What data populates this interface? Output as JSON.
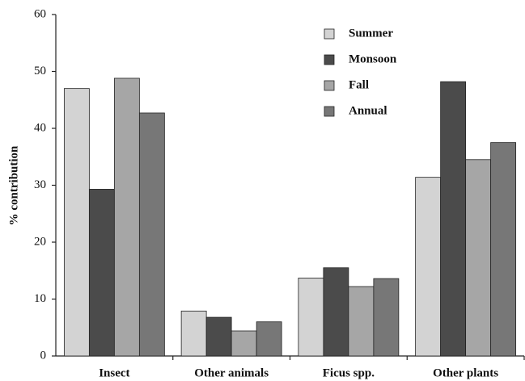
{
  "chart_data": {
    "type": "bar",
    "y_label": "% contribution",
    "categories": [
      "Insect",
      "Other animals",
      "Ficus spp.",
      "Other plants"
    ],
    "series": [
      {
        "name": "Summer",
        "color": "#d3d3d3",
        "values": [
          47,
          7.9,
          13.7,
          31.4
        ]
      },
      {
        "name": "Monsoon",
        "color": "#4b4b4b",
        "values": [
          29.3,
          6.8,
          15.5,
          48.2
        ]
      },
      {
        "name": "Fall",
        "color": "#a6a6a6",
        "values": [
          48.8,
          4.4,
          12.2,
          34.5
        ]
      },
      {
        "name": "Annual",
        "color": "#777777",
        "values": [
          42.7,
          6.0,
          13.6,
          37.5
        ]
      }
    ],
    "ylim": [
      0,
      60
    ],
    "yticks": [
      0,
      10,
      20,
      30,
      40,
      50,
      60
    ],
    "grid": false,
    "legend": "upper center"
  }
}
